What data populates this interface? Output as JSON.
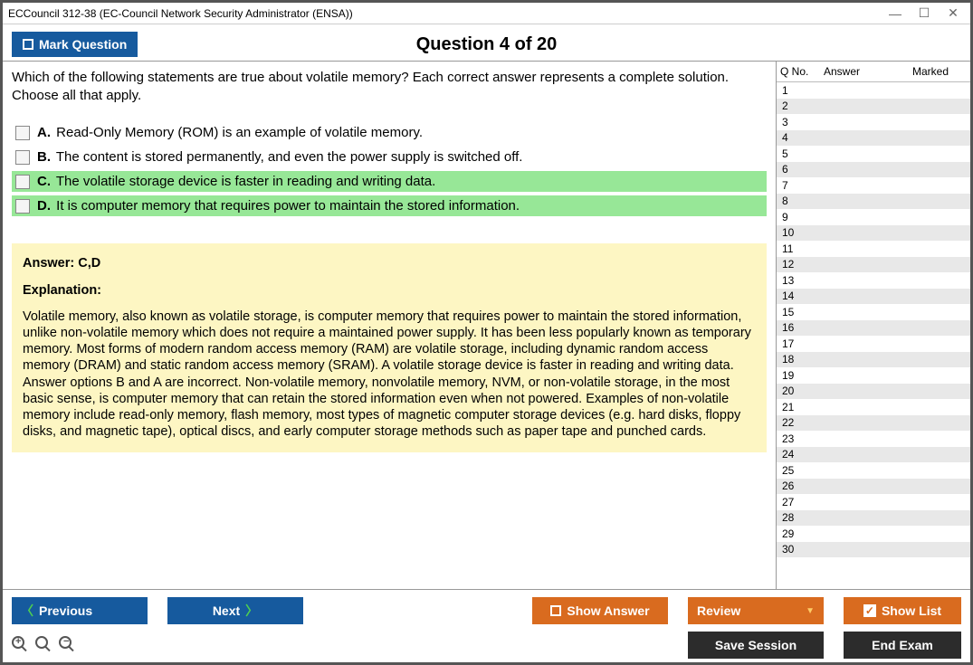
{
  "window": {
    "title": "ECCouncil 312-38 (EC-Council Network Security Administrator (ENSA))"
  },
  "header": {
    "mark_button": "Mark Question",
    "question_title": "Question 4 of 20"
  },
  "question": {
    "text": "Which of the following statements are true about volatile memory? Each correct answer represents a complete solution. Choose all that apply.",
    "options": [
      {
        "letter": "A.",
        "text": "Read-Only Memory (ROM) is an example of volatile memory.",
        "highlight": false
      },
      {
        "letter": "B.",
        "text": "The content is stored permanently, and even the power supply is switched off.",
        "highlight": false
      },
      {
        "letter": "C.",
        "text": "The volatile storage device is faster in reading and writing data.",
        "highlight": true
      },
      {
        "letter": "D.",
        "text": "It is computer memory that requires power to maintain the stored information.",
        "highlight": true
      }
    ]
  },
  "explanation": {
    "answer_line": "Answer: C,D",
    "label": "Explanation:",
    "text": "Volatile memory, also known as volatile storage, is computer memory that requires power to maintain the stored information, unlike non-volatile memory which does not require a maintained power supply. It has been less popularly known as temporary memory. Most forms of modern random access memory (RAM) are volatile storage, including dynamic random access memory (DRAM) and static random access memory (SRAM). A volatile storage device is faster in reading and writing data. Answer options B and A are incorrect. Non-volatile memory, nonvolatile memory, NVM, or non-volatile storage, in the most basic sense, is computer memory that can retain the stored information even when not powered. Examples of non-volatile memory include read-only memory, flash memory, most types of magnetic computer storage devices (e.g. hard disks, floppy disks, and magnetic tape), optical discs, and early computer storage methods such as paper tape and punched cards."
  },
  "side_panel": {
    "headers": {
      "qno": "Q No.",
      "answer": "Answer",
      "marked": "Marked"
    },
    "row_count": 30
  },
  "buttons": {
    "previous": "Previous",
    "next": "Next",
    "show_answer": "Show Answer",
    "review": "Review",
    "show_list": "Show List",
    "save_session": "Save Session",
    "end_exam": "End Exam"
  },
  "colors": {
    "blue": "#165a9e",
    "orange": "#d96b1f",
    "dark": "#2c2c2c",
    "highlight_green": "#97e797",
    "explanation_bg": "#fdf6c3"
  }
}
